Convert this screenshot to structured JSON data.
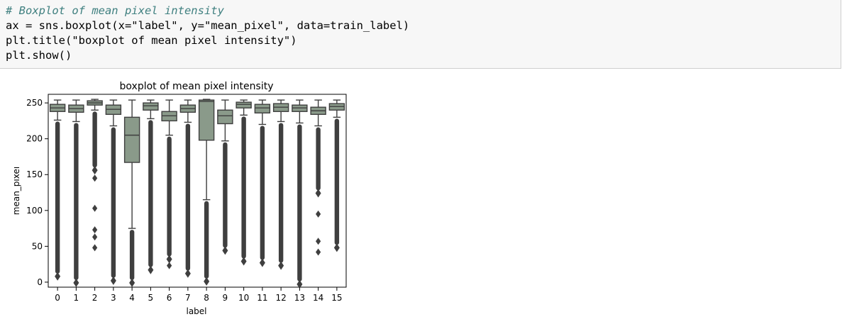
{
  "code_cell": {
    "lines": [
      "# Boxplot of mean pixel intensity",
      "ax = sns.boxplot(x=\"label\", y=\"mean_pixel\", data=train_label)",
      "plt.title(\"boxplot of mean pixel intensity\")",
      "plt.show()"
    ]
  },
  "chart_data": {
    "type": "boxplot",
    "title": "boxplot of mean pixel intensity",
    "xlabel": "label",
    "ylabel": "mean_pixel",
    "ylim": [
      -7,
      262
    ],
    "yticks": [
      0,
      50,
      100,
      150,
      200,
      250
    ],
    "categories": [
      "0",
      "1",
      "2",
      "3",
      "4",
      "5",
      "6",
      "7",
      "8",
      "9",
      "10",
      "11",
      "12",
      "13",
      "14",
      "15"
    ],
    "boxes": [
      {
        "label": "0",
        "whisker_low": 226,
        "q1": 238,
        "median": 243,
        "q3": 248,
        "whisker_high": 254,
        "outlier_min": 12,
        "isolated_outliers": []
      },
      {
        "label": "1",
        "whisker_low": 224,
        "q1": 237,
        "median": 242,
        "q3": 247,
        "whisker_high": 254,
        "outlier_min": 3,
        "isolated_outliers": []
      },
      {
        "label": "2",
        "whisker_low": 240,
        "q1": 247,
        "median": 250,
        "q3": 253,
        "whisker_high": 255,
        "outlier_min": 160,
        "isolated_outliers": [
          145,
          103,
          73,
          63,
          48
        ]
      },
      {
        "label": "3",
        "whisker_low": 218,
        "q1": 234,
        "median": 241,
        "q3": 247,
        "whisker_high": 254,
        "outlier_min": 6,
        "isolated_outliers": []
      },
      {
        "label": "4",
        "whisker_low": 75,
        "q1": 167,
        "median": 205,
        "q3": 230,
        "whisker_high": 254,
        "outlier_min": 3,
        "isolated_outliers": []
      },
      {
        "label": "5",
        "whisker_low": 228,
        "q1": 240,
        "median": 246,
        "q3": 250,
        "whisker_high": 254,
        "outlier_min": 21,
        "isolated_outliers": []
      },
      {
        "label": "6",
        "whisker_low": 205,
        "q1": 225,
        "median": 232,
        "q3": 238,
        "whisker_high": 254,
        "outlier_min": 36,
        "isolated_outliers": [
          23
        ]
      },
      {
        "label": "7",
        "whisker_low": 223,
        "q1": 237,
        "median": 242,
        "q3": 247,
        "whisker_high": 254,
        "outlier_min": 16,
        "isolated_outliers": []
      },
      {
        "label": "8",
        "whisker_low": 115,
        "q1": 198,
        "median": 252,
        "q3": 254,
        "whisker_high": 255,
        "outlier_min": 5,
        "isolated_outliers": []
      },
      {
        "label": "9",
        "whisker_low": 197,
        "q1": 221,
        "median": 232,
        "q3": 240,
        "whisker_high": 254,
        "outlier_min": 48,
        "isolated_outliers": []
      },
      {
        "label": "10",
        "whisker_low": 233,
        "q1": 243,
        "median": 248,
        "q3": 251,
        "whisker_high": 254,
        "outlier_min": 33,
        "isolated_outliers": []
      },
      {
        "label": "11",
        "whisker_low": 220,
        "q1": 236,
        "median": 243,
        "q3": 248,
        "whisker_high": 254,
        "outlier_min": 31,
        "isolated_outliers": []
      },
      {
        "label": "12",
        "whisker_low": 224,
        "q1": 238,
        "median": 244,
        "q3": 249,
        "whisker_high": 254,
        "outlier_min": 27,
        "isolated_outliers": []
      },
      {
        "label": "13",
        "whisker_low": 222,
        "q1": 238,
        "median": 243,
        "q3": 247,
        "whisker_high": 254,
        "outlier_min": 1,
        "isolated_outliers": []
      },
      {
        "label": "14",
        "whisker_low": 218,
        "q1": 234,
        "median": 239,
        "q3": 244,
        "whisker_high": 254,
        "outlier_min": 128,
        "isolated_outliers": [
          95,
          57,
          42
        ]
      },
      {
        "label": "15",
        "whisker_low": 230,
        "q1": 240,
        "median": 245,
        "q3": 249,
        "whisker_high": 254,
        "outlier_min": 52,
        "isolated_outliers": []
      }
    ],
    "box_color": "#8a9a8a",
    "line_color": "#3f3f3f"
  }
}
